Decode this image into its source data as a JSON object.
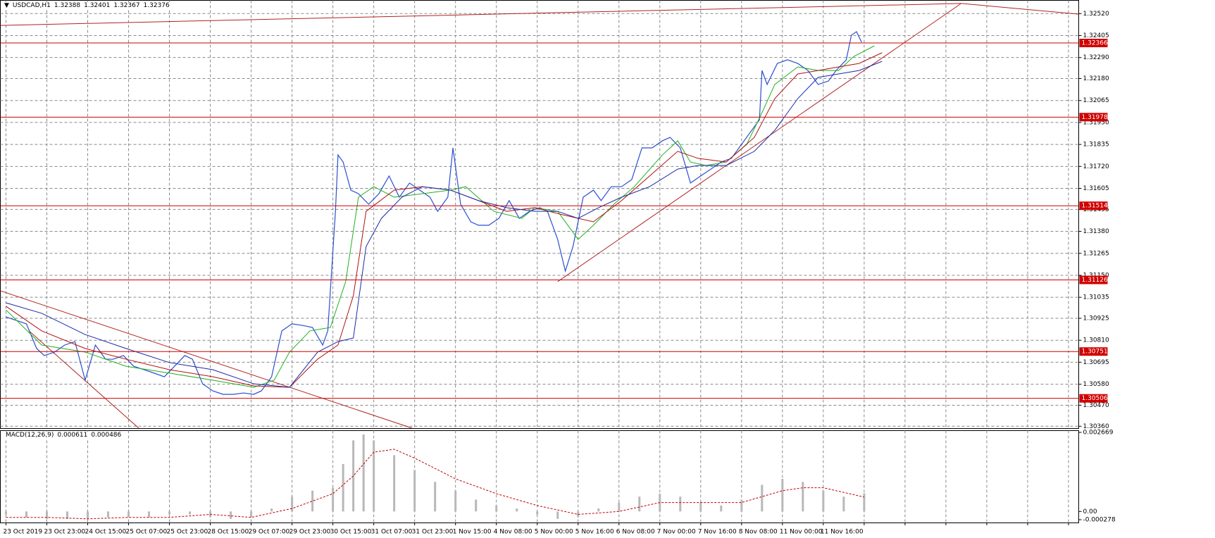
{
  "chart_data": [
    {
      "type": "line",
      "title": "USDCAD,H1",
      "header_values": [
        1.32388,
        1.32401,
        1.32367,
        1.32376
      ],
      "xlim": [
        -2.2,
        420
      ],
      "xticks": [
        {
          "value": 0,
          "label": "23 Oct 2019"
        },
        {
          "value": 16,
          "label": "23 Oct 23:00"
        },
        {
          "value": 32,
          "label": "24 Oct 15:00"
        },
        {
          "value": 48,
          "label": "25 Oct 07:00"
        },
        {
          "value": 64,
          "label": "25 Oct 23:00"
        },
        {
          "value": 80,
          "label": "28 Oct 15:00"
        },
        {
          "value": 96,
          "label": "29 Oct 07:00"
        },
        {
          "value": 112,
          "label": "29 Oct 23:00"
        },
        {
          "value": 128,
          "label": "30 Oct 15:00"
        },
        {
          "value": 144,
          "label": "31 Oct 07:00"
        },
        {
          "value": 160,
          "label": "31 Oct 23:00"
        },
        {
          "value": 176,
          "label": "1 Nov 15:00"
        },
        {
          "value": 192,
          "label": "4 Nov 08:00"
        },
        {
          "value": 208,
          "label": "5 Nov 00:00"
        },
        {
          "value": 224,
          "label": "5 Nov 16:00"
        },
        {
          "value": 240,
          "label": "6 Nov 08:00"
        },
        {
          "value": 256,
          "label": "7 Nov 00:00"
        },
        {
          "value": 272,
          "label": "7 Nov 16:00"
        },
        {
          "value": 288,
          "label": "8 Nov 08:00"
        },
        {
          "value": 304,
          "label": "11 Nov 00:00"
        },
        {
          "value": 320,
          "label": "11 Nov 16:00"
        },
        {
          "value": 336,
          "label": null
        },
        {
          "value": 352,
          "label": null
        },
        {
          "value": 368,
          "label": null
        },
        {
          "value": 384,
          "label": null
        },
        {
          "value": 400,
          "label": null
        },
        {
          "value": 416,
          "label": null
        }
      ],
      "ylim": [
        1.3035,
        1.3258
      ],
      "yticks": [
        {
          "value": 1.3252,
          "label": "1.32520"
        },
        1.32405,
        {
          "value": 1.3229,
          "label": "1.32290"
        },
        {
          "value": 1.3218,
          "label": "1.32180"
        },
        1.32065,
        {
          "value": 1.3195,
          "label": "1.31950"
        },
        1.31835,
        {
          "value": 1.3172,
          "label": "1.31720"
        },
        1.31605,
        1.31495,
        {
          "value": 1.3138,
          "label": "1.31380"
        },
        1.31265,
        {
          "value": 1.3115,
          "label": "1.31150"
        },
        1.31035,
        1.30925,
        {
          "value": 1.3081,
          "label": "1.30810"
        },
        1.30695,
        {
          "value": 1.3058,
          "label": "1.30580"
        },
        {
          "value": 1.3047,
          "label": "1.30470"
        },
        {
          "value": 1.3036,
          "label": "1.30360"
        }
      ],
      "grid": true,
      "series": [
        {
          "color": "#2a4fd0",
          "width": 1.2,
          "x": [
            0,
            4,
            8,
            12,
            15,
            19,
            23,
            27,
            31,
            35,
            39,
            42,
            46,
            50,
            54,
            58,
            62,
            66,
            70,
            73,
            77,
            81,
            85,
            89,
            93,
            97,
            100,
            104,
            108,
            112,
            116,
            120,
            124,
            126,
            129,
            130,
            132,
            135,
            138,
            142,
            146,
            150,
            154,
            158,
            162,
            166,
            169,
            173,
            175,
            178,
            182,
            185,
            189,
            193,
            197,
            201,
            205,
            209,
            212,
            216,
            219,
            222,
            226,
            230,
            233,
            237,
            241,
            245,
            249,
            253,
            257,
            260,
            264,
            268,
            272,
            276,
            280,
            284,
            287,
            291,
            295,
            296,
            298,
            302,
            306,
            310,
            314,
            318,
            322,
            325,
            329,
            331,
            333,
            335
          ],
          "values": [
            1.30932,
            1.30914,
            1.30896,
            1.30767,
            1.3073,
            1.30748,
            1.30785,
            1.30803,
            1.30601,
            1.30785,
            1.30711,
            1.30711,
            1.3073,
            1.30674,
            1.30656,
            1.30638,
            1.30619,
            1.30674,
            1.3073,
            1.30711,
            1.30582,
            1.30545,
            1.30527,
            1.30527,
            1.30534,
            1.30527,
            1.30545,
            1.30619,
            1.30859,
            1.30896,
            1.30888,
            1.30877,
            1.30785,
            1.30859,
            1.31485,
            1.3178,
            1.31743,
            1.31596,
            1.31577,
            1.31522,
            1.31577,
            1.3167,
            1.31559,
            1.31633,
            1.31596,
            1.31559,
            1.31485,
            1.31559,
            1.31817,
            1.31522,
            1.3143,
            1.31412,
            1.31412,
            1.31448,
            1.31541,
            1.31448,
            1.31485,
            1.31504,
            1.31485,
            1.31338,
            1.31172,
            1.31301,
            1.31559,
            1.31596,
            1.31541,
            1.31614,
            1.31614,
            1.31651,
            1.31817,
            1.31817,
            1.31854,
            1.31872,
            1.31817,
            1.31633,
            1.3167,
            1.31706,
            1.31743,
            1.31762,
            1.31817,
            1.31891,
            1.31964,
            1.32222,
            1.32149,
            1.32259,
            1.32278,
            1.32259,
            1.32222,
            1.32149,
            1.32167,
            1.32222,
            1.32278,
            1.32407,
            1.32425,
            1.3237
          ]
        },
        {
          "color": "#20b020",
          "width": 1,
          "x": [
            0,
            14,
            31,
            47,
            64,
            81,
            97,
            105,
            111,
            119,
            127,
            133,
            138,
            144,
            152,
            163,
            174,
            180,
            191,
            202,
            207,
            216,
            224,
            230,
            238,
            246,
            257,
            263,
            268,
            274,
            282,
            290,
            296,
            301,
            310,
            318,
            326,
            332,
            340
          ],
          "values": [
            1.30969,
            1.30785,
            1.30748,
            1.30674,
            1.30638,
            1.30601,
            1.30564,
            1.30601,
            1.30748,
            1.30859,
            1.30877,
            1.31117,
            1.31559,
            1.31614,
            1.31559,
            1.31577,
            1.31596,
            1.31614,
            1.31485,
            1.31448,
            1.31504,
            1.31485,
            1.31338,
            1.31412,
            1.31522,
            1.31614,
            1.3178,
            1.31854,
            1.31743,
            1.31725,
            1.31743,
            1.31835,
            1.32001,
            1.32149,
            1.32241,
            1.32222,
            1.32222,
            1.32296,
            1.32351
          ]
        },
        {
          "color": "#b01010",
          "width": 1,
          "x": [
            0,
            14,
            31,
            47,
            64,
            81,
            97,
            111,
            122,
            130,
            136,
            141,
            152,
            163,
            174,
            185,
            196,
            207,
            218,
            230,
            241,
            252,
            263,
            271,
            282,
            293,
            301,
            310,
            318,
            326,
            334,
            343
          ],
          "values": [
            1.30988,
            1.30859,
            1.30767,
            1.30711,
            1.30656,
            1.30619,
            1.30571,
            1.30564,
            1.30711,
            1.30785,
            1.31043,
            1.31485,
            1.31596,
            1.31614,
            1.31596,
            1.31541,
            1.31485,
            1.31504,
            1.31467,
            1.3143,
            1.31541,
            1.3167,
            1.31799,
            1.31762,
            1.31743,
            1.31872,
            1.32075,
            1.32204,
            1.32222,
            1.32241,
            1.32259,
            1.32315
          ]
        },
        {
          "color": "#1a2aa8",
          "width": 1,
          "x": [
            0,
            14,
            31,
            47,
            64,
            81,
            97,
            111,
            122,
            130,
            136,
            141,
            147,
            155,
            163,
            174,
            185,
            196,
            207,
            216,
            224,
            232,
            241,
            252,
            263,
            271,
            282,
            293,
            301,
            310,
            318,
            326,
            334,
            343
          ],
          "values": [
            1.31006,
            1.30951,
            1.3084,
            1.30767,
            1.30693,
            1.30656,
            1.30582,
            1.30564,
            1.30748,
            1.30803,
            1.30822,
            1.31301,
            1.31448,
            1.31559,
            1.31614,
            1.31596,
            1.31541,
            1.31504,
            1.31485,
            1.31485,
            1.31448,
            1.31504,
            1.31559,
            1.31614,
            1.31706,
            1.31725,
            1.31725,
            1.31799,
            1.31909,
            1.32075,
            1.32186,
            1.32204,
            1.32222,
            1.3227
          ]
        }
      ],
      "levels": {
        "color": "#d00000",
        "values": [
          1.32366,
          1.31978,
          1.31514,
          1.31126,
          1.30751,
          1.30506
        ]
      },
      "trendlines": {
        "color": "#b22222",
        "lines": [
          {
            "x": [
              -2.2,
              374
            ],
            "values": [
              1.32458,
              1.32573
            ]
          },
          {
            "x": [
              374,
              420
            ],
            "values": [
              1.32573,
              1.32517
            ]
          },
          {
            "x": [
              -2.2,
              159
            ],
            "values": [
              1.31069,
              1.3035
            ]
          },
          {
            "x": [
              9,
              52
            ],
            "values": [
              1.30859,
              1.3035
            ]
          },
          {
            "x": [
              216,
              374
            ],
            "values": [
              1.31117,
              1.32573
            ]
          }
        ]
      }
    },
    {
      "type": "macd",
      "title": "MACD(12,26,9)",
      "header_values": [
        0.000611,
        0.000486
      ],
      "ylim": [
        -0.000278,
        0.002669
      ],
      "yticks": [
        0.002669,
        {
          "value": 0,
          "label": "0.00"
        },
        -0.000278
      ],
      "series": [
        {
          "style": "histogram",
          "color": "#b8b8b8",
          "x": [
            0,
            8,
            16,
            24,
            32,
            40,
            48,
            56,
            64,
            72,
            80,
            88,
            96,
            104,
            112,
            120,
            128,
            132,
            136,
            140,
            144,
            152,
            160,
            168,
            176,
            184,
            192,
            200,
            208,
            216,
            224,
            232,
            240,
            248,
            256,
            264,
            272,
            280,
            288,
            296,
            304,
            312,
            320,
            328,
            336
          ],
          "values": [
            -0.0001,
            -0.0002,
            -0.00025,
            -0.00025,
            -0.00025,
            -0.0002,
            -0.0002,
            -0.0002,
            -0.0001,
            -0.0001,
            -0.0002,
            -0.00025,
            -0.0002,
            0.0001,
            0.0005,
            0.0007,
            0.0008,
            0.0016,
            0.0024,
            0.0026,
            0.0024,
            0.0019,
            0.0014,
            0.001,
            0.0007,
            0.0004,
            0.0002,
            0.0001,
            -0.0001,
            -0.00025,
            -0.0002,
            0.0001,
            0.0003,
            0.0005,
            0.0006,
            0.0005,
            0.0003,
            0.0002,
            0.0004,
            0.0009,
            0.0011,
            0.001,
            0.0007,
            0.0005,
            0.000611
          ]
        },
        {
          "style": "dotted",
          "color": "#c00000",
          "x": [
            0,
            16,
            32,
            48,
            64,
            80,
            96,
            112,
            128,
            136,
            144,
            152,
            160,
            176,
            192,
            208,
            224,
            240,
            256,
            272,
            288,
            304,
            312,
            320,
            336
          ],
          "values": [
            -0.0002,
            -0.0002,
            -0.00025,
            -0.0002,
            -0.0002,
            -0.0001,
            -0.0002,
            0.0001,
            0.0006,
            0.0012,
            0.002,
            0.0021,
            0.0018,
            0.0011,
            0.0006,
            0.0002,
            -0.0001,
            0,
            0.0003,
            0.0003,
            0.0003,
            0.0007,
            0.0008,
            0.0008,
            0.000486
          ]
        }
      ]
    }
  ]
}
